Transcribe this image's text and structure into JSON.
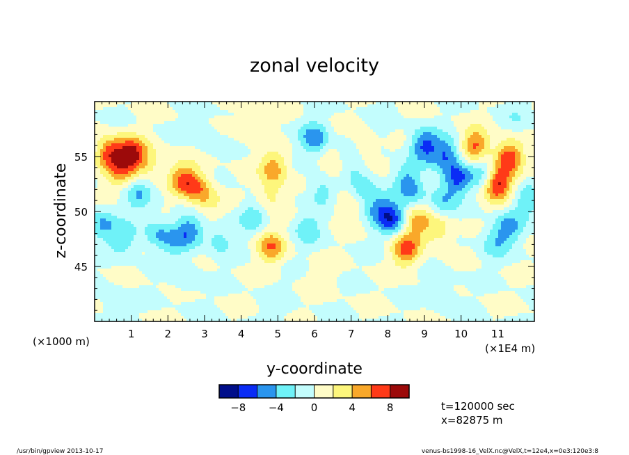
{
  "chart_data": {
    "type": "heatmap",
    "title": "zonal velocity",
    "xlabel": "y-coordinate",
    "ylabel": "z-coordinate",
    "x_unit_left": "(×1000 m)",
    "x_unit_right": "(×1E4 m)",
    "xlim": [
      0,
      12
    ],
    "ylim": [
      40,
      60
    ],
    "xticks": [
      "1",
      "2",
      "3",
      "4",
      "5",
      "6",
      "7",
      "8",
      "9",
      "10",
      "11"
    ],
    "yticks": [
      "45",
      "50",
      "55"
    ],
    "colorbar": {
      "levels": [
        -10,
        -8,
        -6,
        -4,
        -2,
        0,
        2,
        4,
        6,
        8,
        10
      ],
      "tick_labels": [
        "-8",
        "-4",
        "0",
        "4",
        "8"
      ],
      "colors": [
        "#000e8a",
        "#0a2cf5",
        "#2a95ee",
        "#6ff2f8",
        "#c3fdfd",
        "#fffcc7",
        "#fdf67c",
        "#f9a82a",
        "#ff3a18",
        "#9c0a0a"
      ]
    },
    "fields": [
      {
        "y": 0.4,
        "z": 55.3,
        "value": 7.2
      },
      {
        "y": 1.0,
        "z": 55.2,
        "value": 8.6
      },
      {
        "y": 0.7,
        "z": 53.5,
        "value": 3.5
      },
      {
        "y": 1.5,
        "z": 54.5,
        "value": 3.0
      },
      {
        "y": 2.4,
        "z": 53.0,
        "value": 5.6
      },
      {
        "y": 2.8,
        "z": 52.2,
        "value": 5.0
      },
      {
        "y": 3.1,
        "z": 50.8,
        "value": 2.6
      },
      {
        "y": 4.9,
        "z": 54.0,
        "value": 5.2
      },
      {
        "y": 4.8,
        "z": 51.5,
        "value": 3.0
      },
      {
        "y": 4.8,
        "z": 46.8,
        "value": 5.6
      },
      {
        "y": 6.6,
        "z": 54.2,
        "value": 3.2
      },
      {
        "y": 7.3,
        "z": 56.0,
        "value": 2.6
      },
      {
        "y": 6.9,
        "z": 50.4,
        "value": 2.6
      },
      {
        "y": 8.8,
        "z": 49.0,
        "value": 4.6
      },
      {
        "y": 9.4,
        "z": 48.3,
        "value": 3.4
      },
      {
        "y": 8.5,
        "z": 46.5,
        "value": 6.6
      },
      {
        "y": 10.4,
        "z": 56.0,
        "value": 6.6
      },
      {
        "y": 11.3,
        "z": 55.0,
        "value": 7.4
      },
      {
        "y": 11.0,
        "z": 52.5,
        "value": 8.5
      },
      {
        "y": 4.2,
        "z": 58.0,
        "value": 2.0
      },
      {
        "y": 6.2,
        "z": 44.0,
        "value": 1.5
      },
      {
        "y": 1.2,
        "z": 51.5,
        "value": -3.6
      },
      {
        "y": 0.2,
        "z": 48.8,
        "value": -4.2
      },
      {
        "y": 0.8,
        "z": 47.5,
        "value": -3.4
      },
      {
        "y": 1.7,
        "z": 48.0,
        "value": -3.6
      },
      {
        "y": 2.2,
        "z": 47.2,
        "value": -2.8
      },
      {
        "y": 2.6,
        "z": 48.3,
        "value": -4.8
      },
      {
        "y": 3.4,
        "z": 47.5,
        "value": -2.8
      },
      {
        "y": 3.0,
        "z": 57.0,
        "value": -1.6
      },
      {
        "y": 4.3,
        "z": 49.5,
        "value": -3.2
      },
      {
        "y": 5.8,
        "z": 48.5,
        "value": -3.4
      },
      {
        "y": 6.0,
        "z": 56.6,
        "value": -5.4
      },
      {
        "y": 6.2,
        "z": 52.0,
        "value": -3.0
      },
      {
        "y": 6.9,
        "z": 54.8,
        "value": -3.8
      },
      {
        "y": 7.3,
        "z": 52.0,
        "value": -3.2
      },
      {
        "y": 7.7,
        "z": 50.4,
        "value": -4.0
      },
      {
        "y": 8.1,
        "z": 49.4,
        "value": -6.8
      },
      {
        "y": 8.5,
        "z": 53.0,
        "value": -3.6
      },
      {
        "y": 9.0,
        "z": 56.0,
        "value": -6.2
      },
      {
        "y": 9.6,
        "z": 55.2,
        "value": -5.8
      },
      {
        "y": 9.9,
        "z": 53.0,
        "value": -6.4
      },
      {
        "y": 9.5,
        "z": 51.0,
        "value": -3.6
      },
      {
        "y": 8.7,
        "z": 51.6,
        "value": -2.6
      },
      {
        "y": 10.6,
        "z": 53.6,
        "value": -3.4
      },
      {
        "y": 11.3,
        "z": 48.5,
        "value": -4.4
      },
      {
        "y": 11.8,
        "z": 51.0,
        "value": -3.2
      },
      {
        "y": 10.9,
        "z": 47.2,
        "value": -3.0
      },
      {
        "y": 2.5,
        "z": 44.0,
        "value": -1.6
      },
      {
        "y": 9.5,
        "z": 42.5,
        "value": -1.6
      },
      {
        "y": 0.5,
        "z": 41.5,
        "value": -1.4
      },
      {
        "y": 11.5,
        "z": 58.5,
        "value": -1.4
      },
      {
        "y": 7.8,
        "z": 58.0,
        "value": -1.2
      },
      {
        "y": 5.0,
        "z": 41.5,
        "value": -1.2
      }
    ]
  },
  "annotations": {
    "time": "t=120000 sec",
    "xpos": "x=82875 m",
    "footer_left": "/usr/bin/gpview  2013-10-17",
    "footer_right": "venus-bs1998-16_VelX.nc@VelX,t=12e4,x=0e3:120e3:8"
  }
}
